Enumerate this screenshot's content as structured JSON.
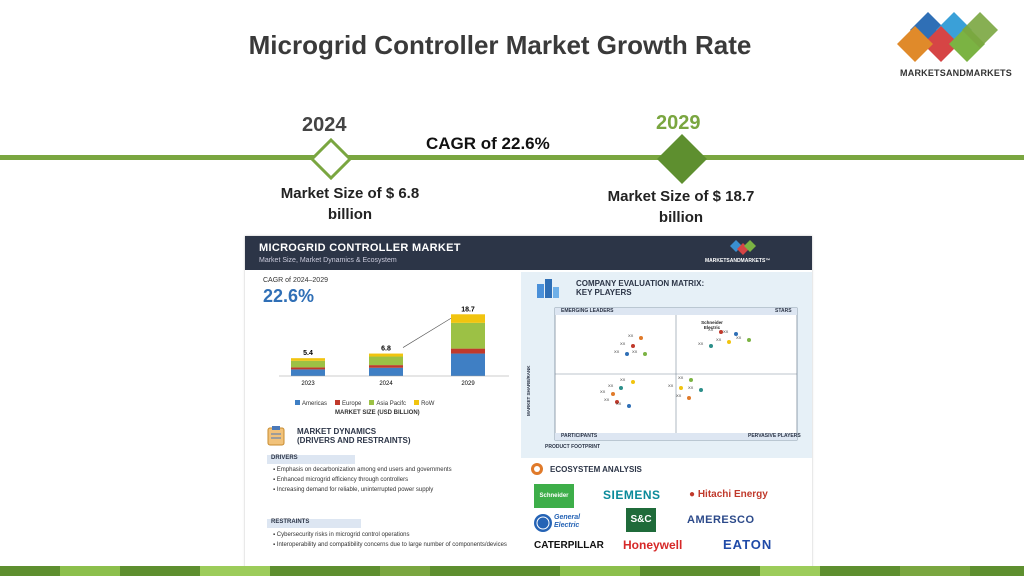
{
  "page": {
    "title": "Microgrid Controller Market Growth Rate",
    "logo_text": "MARKETSANDMARKETS",
    "brand_colors": {
      "green": "#7aa640",
      "dark_green": "#5e8f2f",
      "navy": "#2c3547"
    }
  },
  "timeline": {
    "start_year": "2024",
    "end_year": "2029",
    "cagr": "CAGR of 22.6%",
    "start_size": "Market Size of $ 6.8 billion",
    "end_size": "Market Size of $ 18.7 billion"
  },
  "infographic": {
    "header_title": "MICROGRID CONTROLLER MARKET",
    "header_sub": "Market Size, Market Dynamics & Ecosystem",
    "header_logo": "MARKETSANDMARKETS™",
    "cagr_label": "CAGR of 2024–2029",
    "cagr_value": "22.6%",
    "market_size_label": "MARKET SIZE (USD BILLION)",
    "chart_data": {
      "type": "bar",
      "stacked": true,
      "categories": [
        "2023",
        "2024",
        "2029"
      ],
      "totals": [
        5.4,
        6.8,
        18.7
      ],
      "series": [
        {
          "name": "Americas",
          "color": "#3f7fc4",
          "values": [
            2.0,
            2.5,
            6.8
          ]
        },
        {
          "name": "Europe",
          "color": "#c0392b",
          "values": [
            0.6,
            0.8,
            1.5
          ]
        },
        {
          "name": "Asia Pacifc",
          "color": "#9cc145",
          "values": [
            2.0,
            2.6,
            7.8
          ]
        },
        {
          "name": "RoW",
          "color": "#f1c40f",
          "values": [
            0.8,
            0.9,
            2.6
          ]
        }
      ]
    },
    "dynamics": {
      "title_1": "MARKET DYNAMICS",
      "title_2": "(DRIVERS AND RESTRAINTS)",
      "drivers_label": "DRIVERS",
      "drivers": [
        "Emphasis on decarbonization among end users and governments",
        "Enhanced microgrid efficiency through controllers",
        "Increasing demand for reliable, uninterrupted power supply"
      ],
      "restraints_label": "RESTRAINTS",
      "restraints": [
        "Cybersecurity risks in microgrid control operations",
        "Interoperability and compatibility concerns due to large number of components/devices"
      ]
    },
    "matrix": {
      "title_1": "COMPANY EVALUATION MATRIX:",
      "title_2": "KEY PLAYERS",
      "q_tl": "EMERGING LEADERS",
      "q_tr": "STARS",
      "q_bl": "PARTICIPANTS",
      "q_br": "PERVASIVE PLAYERS",
      "y_axis": "MARKET SHARE/RANK",
      "x_axis": "PRODUCT FOOTPRINT",
      "highlight": "Schneider Electric",
      "placeholder": "XX"
    },
    "ecosystem": {
      "title": "ECOSYSTEM ANALYSIS",
      "companies": [
        "Schneider Electric",
        "SIEMENS",
        "Hitachi Energy",
        "General Electric",
        "S&C",
        "AMERESCO",
        "CATERPILLAR",
        "Honeywell",
        "EATON"
      ]
    }
  }
}
